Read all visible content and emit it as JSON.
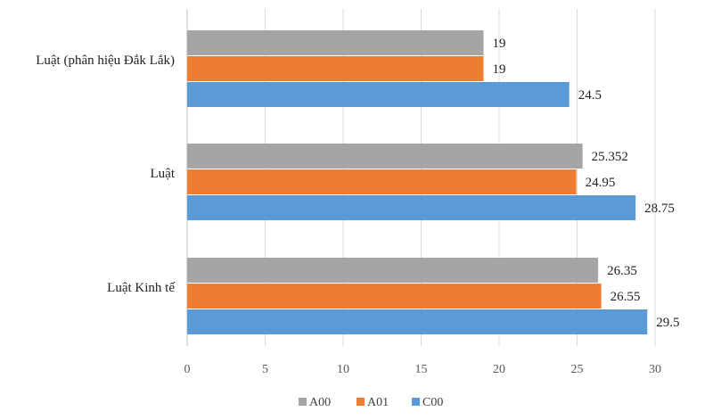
{
  "chart_data": {
    "type": "bar",
    "orientation": "horizontal",
    "categories": [
      "Luật (phân hiệu Đắk Lắk)",
      "Luật",
      "Luật Kinh tế"
    ],
    "series": [
      {
        "name": "A00",
        "color": "#a5a5a5",
        "values": [
          19,
          25.352,
          26.35
        ],
        "labels": [
          "19",
          "25.352",
          "26.35"
        ]
      },
      {
        "name": "A01",
        "color": "#ed7d31",
        "values": [
          19,
          24.95,
          26.55
        ],
        "labels": [
          "19",
          "24.95",
          "26.55"
        ]
      },
      {
        "name": "C00",
        "color": "#5b9bd5",
        "values": [
          24.5,
          28.75,
          29.5
        ],
        "labels": [
          "24.5",
          "28.75",
          "29.5"
        ]
      }
    ],
    "xlim": [
      0,
      30
    ],
    "xticks": [
      0,
      5,
      10,
      15,
      20,
      25,
      30
    ],
    "grid": true,
    "legend": "bottom",
    "title": "",
    "xlabel": "",
    "ylabel": ""
  }
}
